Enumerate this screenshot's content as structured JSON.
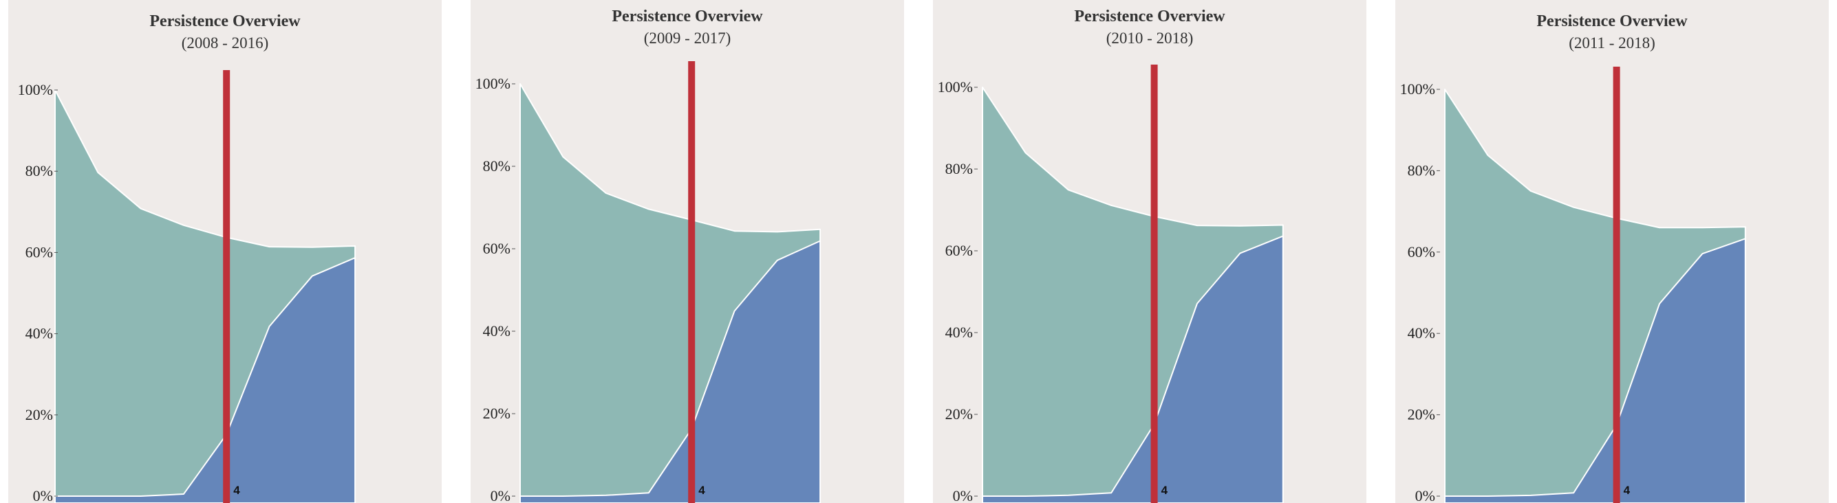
{
  "colors": {
    "background": "#efebe9",
    "retained": "#8eb8b4",
    "graduated": "#6586ba",
    "marker": "#bf3039"
  },
  "chart_data": [
    {
      "type": "area",
      "title": "Persistence Overview",
      "subtitle": "(2008 - 2016)",
      "x": [
        1,
        2,
        3,
        4,
        5,
        6,
        7,
        8
      ],
      "ylim": [
        0,
        100
      ],
      "yticks": [
        "0%",
        "20%",
        "40%",
        "60%",
        "80%",
        "100%"
      ],
      "series": [
        {
          "values": [
            100,
            79.7,
            70.8,
            66.7,
            63.7,
            61.4,
            61.3,
            61.6
          ]
        },
        {
          "values": [
            0,
            0,
            0,
            0.5,
            15.2,
            41.8,
            54.2,
            58.7
          ]
        }
      ],
      "marker": {
        "x": 5,
        "label": "4"
      }
    },
    {
      "type": "area",
      "title": "Persistence Overview",
      "subtitle": "(2009 - 2017)",
      "x": [
        1,
        2,
        3,
        4,
        5,
        6,
        7,
        8
      ],
      "ylim": [
        0,
        100
      ],
      "yticks": [
        "0%",
        "20%",
        "40%",
        "60%",
        "80%",
        "100%"
      ],
      "series": [
        {
          "values": [
            100,
            82.3,
            73.5,
            69.6,
            67.0,
            64.3,
            64.1,
            64.7
          ]
        },
        {
          "values": [
            0,
            0,
            0.2,
            0.8,
            16.3,
            44.9,
            57.2,
            61.9
          ]
        }
      ],
      "marker": {
        "x": 5,
        "label": "4"
      }
    },
    {
      "type": "area",
      "title": "Persistence Overview",
      "subtitle": "(2010 - 2018)",
      "x": [
        1,
        2,
        3,
        4,
        5,
        6,
        7,
        8
      ],
      "ylim": [
        0,
        100
      ],
      "yticks": [
        "0%",
        "20%",
        "40%",
        "60%",
        "80%",
        "100%"
      ],
      "series": [
        {
          "values": [
            100,
            84.0,
            74.9,
            71.1,
            68.4,
            66.2,
            66.1,
            66.3
          ]
        },
        {
          "values": [
            0,
            0,
            0.2,
            0.8,
            17.6,
            47.1,
            59.4,
            63.6
          ]
        }
      ],
      "marker": {
        "x": 5,
        "label": "4"
      }
    },
    {
      "type": "area",
      "title": "Persistence Overview",
      "subtitle": "(2011 - 2018)",
      "x": [
        1,
        2,
        3,
        4,
        5,
        6,
        7,
        8
      ],
      "ylim": [
        0,
        100
      ],
      "yticks": [
        "0%",
        "20%",
        "40%",
        "60%",
        "80%",
        "100%"
      ],
      "series": [
        {
          "values": [
            100,
            83.8,
            75.0,
            71.0,
            68.3,
            66.0,
            66.0,
            66.2
          ]
        },
        {
          "values": [
            0,
            0,
            0.2,
            0.8,
            17.5,
            47.3,
            59.6,
            63.3
          ]
        }
      ],
      "marker": {
        "x": 5,
        "label": "4"
      }
    }
  ]
}
